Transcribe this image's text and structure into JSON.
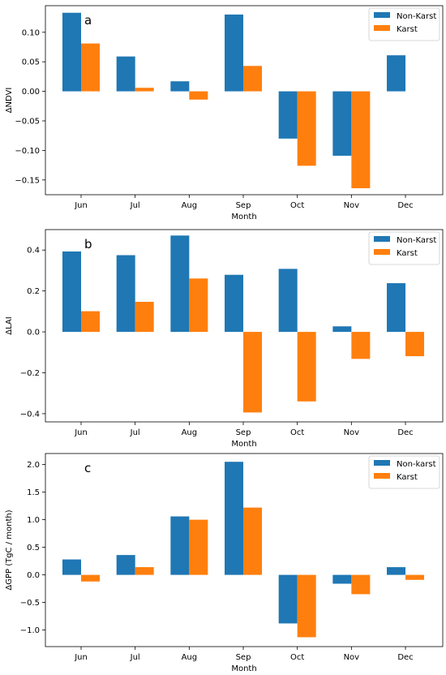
{
  "chart_data": [
    {
      "type": "bar",
      "panel_label": "a",
      "categories": [
        "Jun",
        "Jul",
        "Aug",
        "Sep",
        "Oct",
        "Nov",
        "Dec"
      ],
      "series": [
        {
          "name": "Non-Karst",
          "color": "#1f77b4",
          "values": [
            0.133,
            0.059,
            0.017,
            0.13,
            -0.08,
            -0.109,
            0.061
          ]
        },
        {
          "name": "Karst",
          "color": "#ff7f0e",
          "values": [
            0.081,
            0.006,
            -0.014,
            0.043,
            -0.126,
            -0.164,
            null
          ]
        }
      ],
      "xlabel": "Month",
      "ylabel": "ΔNDVI",
      "ylim": [
        -0.175,
        0.145
      ],
      "yticks": [
        -0.15,
        -0.1,
        -0.05,
        0.0,
        0.05,
        0.1
      ],
      "ytick_labels": [
        "−0.15",
        "−0.10",
        "−0.05",
        "0.00",
        "0.05",
        "0.10"
      ],
      "legend_position": "top-right"
    },
    {
      "type": "bar",
      "panel_label": "b",
      "categories": [
        "Jun",
        "Jul",
        "Aug",
        "Sep",
        "Oct",
        "Nov",
        "Dec"
      ],
      "series": [
        {
          "name": "Non-Karst",
          "color": "#1f77b4",
          "values": [
            0.393,
            0.375,
            0.471,
            0.279,
            0.308,
            0.027,
            0.238
          ]
        },
        {
          "name": "Karst",
          "color": "#ff7f0e",
          "values": [
            0.101,
            0.147,
            0.261,
            -0.394,
            -0.34,
            -0.132,
            -0.119
          ]
        }
      ],
      "xlabel": "Month",
      "ylabel": "ΔLAI",
      "ylim": [
        -0.44,
        0.5
      ],
      "yticks": [
        -0.4,
        -0.2,
        0.0,
        0.2,
        0.4
      ],
      "ytick_labels": [
        "−0.4",
        "−0.2",
        "0.0",
        "0.2",
        "0.4"
      ],
      "legend_position": "top-right"
    },
    {
      "type": "bar",
      "panel_label": "c",
      "categories": [
        "Jun",
        "Jul",
        "Aug",
        "Sep",
        "Oct",
        "Nov",
        "Dec"
      ],
      "series": [
        {
          "name": "Non-karst",
          "color": "#1f77b4",
          "values": [
            0.28,
            0.36,
            1.06,
            2.05,
            -0.88,
            -0.16,
            0.14
          ]
        },
        {
          "name": "Karst",
          "color": "#ff7f0e",
          "values": [
            -0.12,
            0.14,
            1.0,
            1.22,
            -1.13,
            -0.35,
            -0.09
          ]
        }
      ],
      "xlabel": "Month",
      "ylabel": "ΔGPP (TgC / month)",
      "ylim": [
        -1.3,
        2.2
      ],
      "yticks": [
        -1.0,
        -0.5,
        0.0,
        0.5,
        1.0,
        1.5,
        2.0
      ],
      "ytick_labels": [
        "−1.0",
        "−0.5",
        "0.0",
        "0.5",
        "1.0",
        "1.5",
        "2.0"
      ],
      "legend_position": "top-right"
    }
  ]
}
